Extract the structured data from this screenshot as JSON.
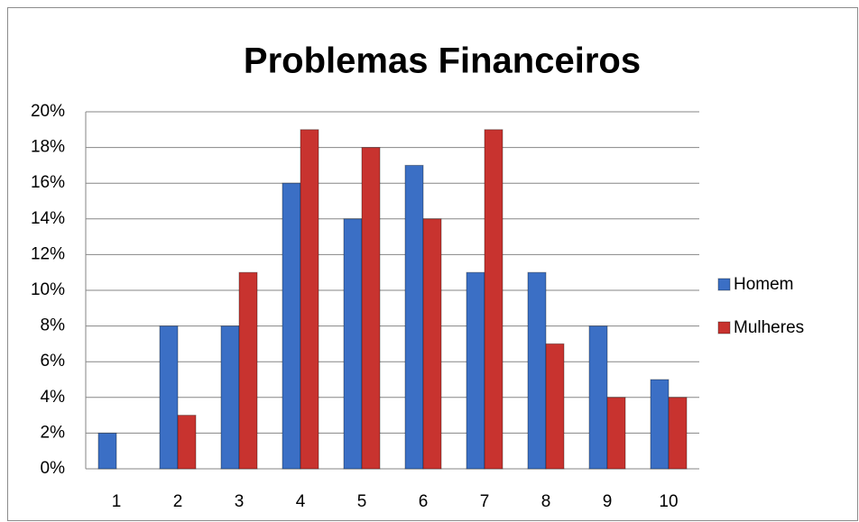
{
  "chart_data": {
    "type": "bar",
    "title": "Problemas Financeiros",
    "categories": [
      "1",
      "2",
      "3",
      "4",
      "5",
      "6",
      "7",
      "8",
      "9",
      "10"
    ],
    "series": [
      {
        "name": "Homem",
        "color": "#3b6fc5",
        "values": [
          2,
          8,
          8,
          16,
          14,
          17,
          11,
          11,
          8,
          5
        ]
      },
      {
        "name": "Mulheres",
        "color": "#c8332f",
        "values": [
          0,
          3,
          11,
          19,
          18,
          14,
          19,
          7,
          4,
          4
        ]
      }
    ],
    "ylim": [
      0,
      20
    ],
    "yticks": [
      {
        "value": 0,
        "label": "0%"
      },
      {
        "value": 2,
        "label": "2%"
      },
      {
        "value": 4,
        "label": "4%"
      },
      {
        "value": 6,
        "label": "6%"
      },
      {
        "value": 8,
        "label": "8%"
      },
      {
        "value": 10,
        "label": "10%"
      },
      {
        "value": 12,
        "label": "12%"
      },
      {
        "value": 14,
        "label": "14%"
      },
      {
        "value": 16,
        "label": "16%"
      },
      {
        "value": 18,
        "label": "18%"
      },
      {
        "value": 20,
        "label": "20%"
      }
    ],
    "grid": true,
    "legend": "right"
  }
}
